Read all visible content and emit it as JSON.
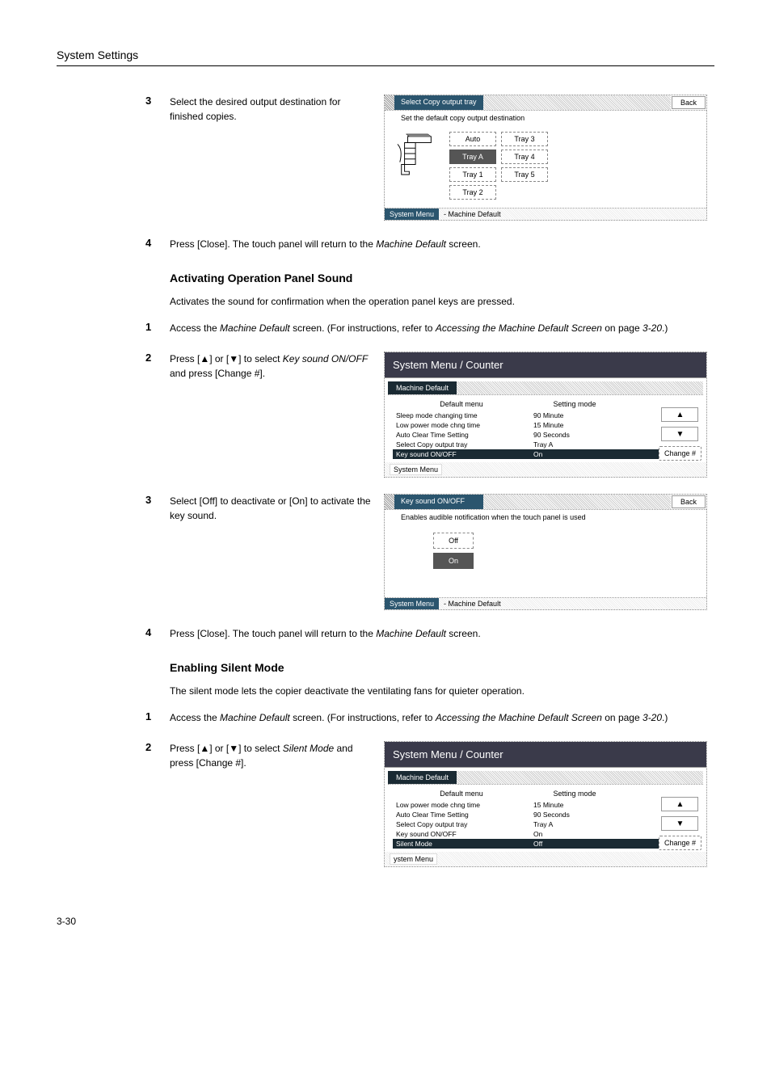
{
  "header": {
    "title": "System Settings"
  },
  "page_number": "3-30",
  "section1": {
    "step3_text": "Select the desired output destination for finished copies.",
    "step4_text": "Press [Close]. The touch panel will return to the <em>Machine Default</em> screen.",
    "panel": {
      "title": "Select Copy output tray",
      "back": "Back",
      "subtitle": "Set the default copy output destination",
      "buttons_col1": [
        "Auto",
        "Tray A",
        "Tray  1",
        "Tray  2"
      ],
      "buttons_col2": [
        "Tray  3",
        "Tray  4",
        "Tray  5"
      ],
      "selected": "Tray A",
      "footer_left": "System Menu",
      "footer_text": "-   Machine Default"
    }
  },
  "section2": {
    "heading": "Activating Operation Panel Sound",
    "desc": "Activates the sound for confirmation when the operation panel keys are pressed.",
    "step1_text": "Access the <em>Machine Default</em> screen. (For instructions, refer to <em>Accessing the Machine Default Screen</em> on page <em>3-20</em>.)",
    "step2_text": "Press [▲] or [▼] to select <em>Key sound ON/OFF</em> and press [Change #].",
    "panel_menu": {
      "header": "System Menu / Counter",
      "breadcrumb": "Machine Default",
      "col1": "Default menu",
      "col2": "Setting mode",
      "rows": [
        {
          "label": "Sleep mode changing time",
          "value": "90  Minute"
        },
        {
          "label": "Low power mode chng time",
          "value": "15  Minute"
        },
        {
          "label": "Auto Clear Time Setting",
          "value": "90  Seconds"
        },
        {
          "label": "Select Copy output tray",
          "value": "Tray A"
        },
        {
          "label": "Key sound ON/OFF",
          "value": "On",
          "selected": true
        }
      ],
      "up_icon": "▲",
      "down_icon": "▼",
      "change": "Change #",
      "footer": "System Menu"
    },
    "step3_text": "Select [Off] to deactivate or [On] to activate the key sound.",
    "panel_onoff": {
      "title": "Key sound ON/OFF",
      "back": "Back",
      "subtitle": "Enables audible notification when the touch panel is used",
      "off": "Off",
      "on": "On",
      "selected": "On",
      "footer_left": "System Menu",
      "footer_text": "-   Machine Default"
    },
    "step4_text": "Press [Close]. The touch panel will return to the <em>Machine Default</em> screen."
  },
  "section3": {
    "heading": "Enabling Silent Mode",
    "desc": "The silent mode lets the copier deactivate the ventilating fans for quieter operation.",
    "step1_text": "Access the <em>Machine Default</em> screen. (For instructions, refer to <em>Accessing the Machine Default Screen</em> on page <em>3-20</em>.)",
    "step2_text": "Press [▲] or [▼] to select <em>Silent Mode</em> and press [Change #].",
    "panel_menu": {
      "header": "System Menu / Counter",
      "breadcrumb": "Machine Default",
      "col1": "Default menu",
      "col2": "Setting mode",
      "rows": [
        {
          "label": "Low power mode chng time",
          "value": "15  Minute"
        },
        {
          "label": "Auto Clear Time Setting",
          "value": "90  Seconds"
        },
        {
          "label": "Select Copy output tray",
          "value": "Tray A"
        },
        {
          "label": "Key sound ON/OFF",
          "value": "On"
        },
        {
          "label": "Silent Mode",
          "value": "Off",
          "selected": true
        }
      ],
      "up_icon": "▲",
      "down_icon": "▼",
      "change": "Change #",
      "footer": "ystem Menu"
    }
  }
}
